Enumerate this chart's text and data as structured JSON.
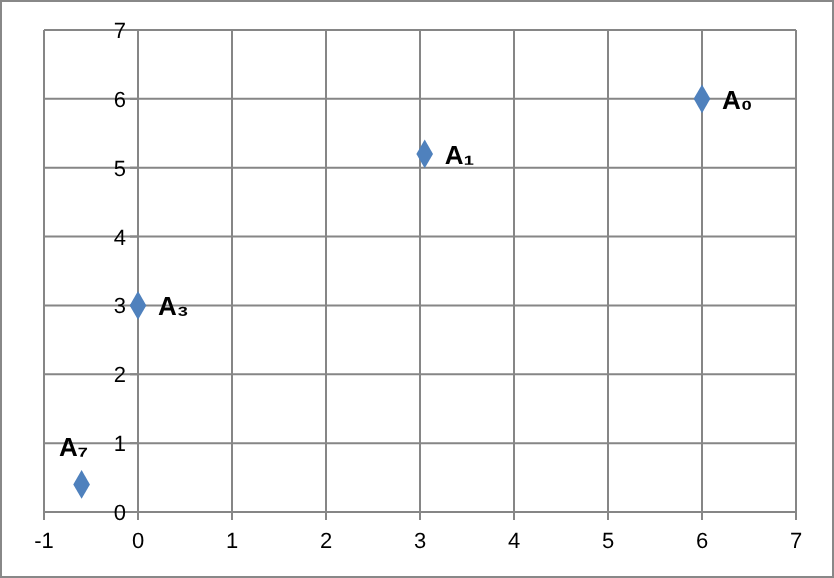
{
  "chart_data": {
    "type": "scatter",
    "x": [
      6,
      3.05,
      0,
      -0.6
    ],
    "values": [
      6,
      5.2,
      3,
      0.4
    ],
    "color": "#4f81bd",
    "marker": "diamond",
    "xlim": [
      -1,
      7
    ],
    "ylim": [
      0,
      7
    ],
    "xticks": [
      -1,
      0,
      1,
      2,
      3,
      4,
      5,
      6,
      7
    ],
    "yticks": [
      0,
      1,
      2,
      3,
      4,
      5,
      6,
      7
    ],
    "grid": true,
    "annotations": [
      {
        "text": "A₀",
        "x": 6,
        "y": 6
      },
      {
        "text": "A₁",
        "x": 3.05,
        "y": 5.2
      },
      {
        "text": "A₃",
        "x": 0,
        "y": 3
      },
      {
        "text": "A₇",
        "x": -0.6,
        "y": 0.4
      }
    ]
  }
}
